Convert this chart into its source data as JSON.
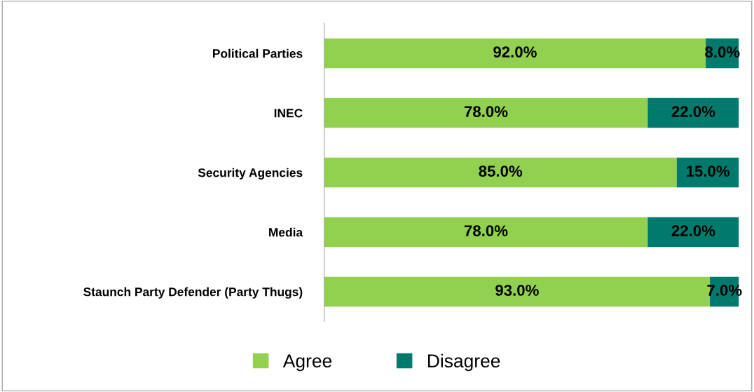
{
  "chart_data": {
    "type": "bar",
    "orientation": "horizontal",
    "stacked": true,
    "categories": [
      "Political Parties",
      "INEC",
      "Security Agencies",
      "Media",
      "Staunch Party Defender (Party Thugs)"
    ],
    "series": [
      {
        "name": "Agree",
        "color": "#92d050",
        "values": [
          92,
          78,
          85,
          78,
          93
        ],
        "value_labels": [
          "92.0%",
          "78.0%",
          "85.0%",
          "78.0%",
          "93.0%"
        ]
      },
      {
        "name": "Disagree",
        "color": "#007a6c",
        "values": [
          8,
          22,
          15,
          22,
          7
        ],
        "value_labels": [
          "8.0%",
          "22.0%",
          "15.0%",
          "22.0%",
          "7.0%"
        ]
      }
    ],
    "xlim": [
      0,
      100
    ],
    "tick_labels": "y",
    "grid": false,
    "legend": "bottom"
  }
}
